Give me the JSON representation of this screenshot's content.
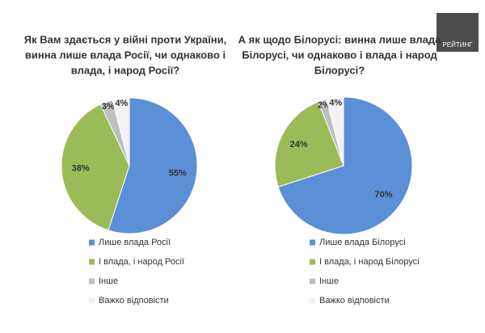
{
  "logo": "РЕЙТИНГ",
  "chart_data": [
    {
      "type": "pie",
      "title": [
        "Як Вам здається у війні проти України,",
        "винна лише влада Росії, чи однаково і",
        "влада, і народ Росії?"
      ],
      "categories": [
        "Лише влада Росії",
        "І влада, і народ Росії",
        "Інше",
        "Важко відповісти"
      ],
      "values": [
        55,
        38,
        3,
        4
      ],
      "value_labels": [
        "55%",
        "38%",
        "3%",
        "4%"
      ],
      "colors": [
        "#5b8fd6",
        "#9bbb59",
        "#bfbfbf",
        "#f2f2f2"
      ]
    },
    {
      "type": "pie",
      "title": [
        "А як щодо Білорусі: винна лише влада",
        "Білорусі, чи однаково і влада і народ",
        "Білорусі?"
      ],
      "categories": [
        "Лише влада Білорусі",
        "І влада, і народ Білорусі",
        "Інше",
        "Важко відповісти"
      ],
      "values": [
        70,
        24,
        2,
        4
      ],
      "value_labels": [
        "70%",
        "24%",
        "2%",
        "4%"
      ],
      "colors": [
        "#5b8fd6",
        "#9bbb59",
        "#bfbfbf",
        "#f2f2f2"
      ]
    }
  ]
}
